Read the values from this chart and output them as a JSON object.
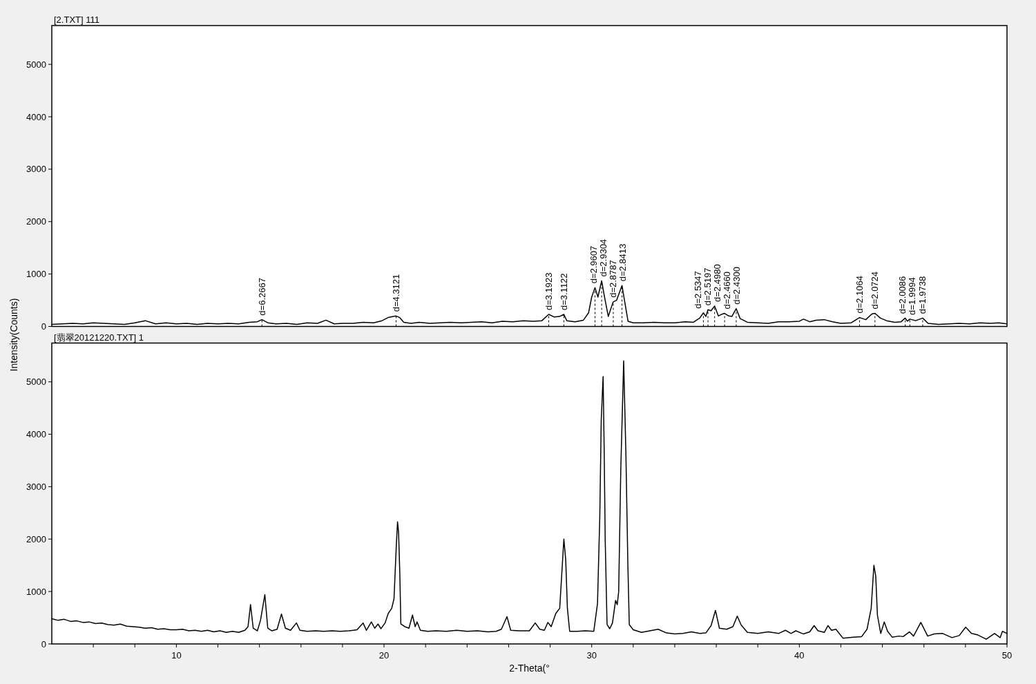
{
  "chart_data": [
    {
      "type": "line",
      "title": "[2.TXT] 111",
      "color": "#000000",
      "x": [
        4.0,
        4.5,
        5.0,
        5.5,
        6.0,
        6.5,
        7.0,
        7.5,
        8.0,
        8.5,
        9.0,
        9.5,
        10.0,
        10.5,
        11.0,
        11.5,
        12.0,
        12.5,
        13.0,
        13.5,
        13.9,
        14.12,
        14.4,
        14.8,
        15.3,
        15.8,
        16.3,
        16.8,
        17.2,
        17.6,
        18.0,
        18.5,
        19.0,
        19.5,
        19.9,
        20.2,
        20.45,
        20.58,
        20.75,
        20.95,
        21.3,
        21.7,
        22.2,
        22.7,
        23.2,
        23.7,
        24.2,
        24.7,
        25.2,
        25.7,
        26.2,
        26.7,
        27.2,
        27.6,
        27.93,
        28.2,
        28.45,
        28.66,
        28.8,
        29.2,
        29.6,
        29.85,
        30.0,
        30.16,
        30.3,
        30.48,
        30.6,
        30.8,
        31.0,
        31.04,
        31.2,
        31.46,
        31.6,
        31.75,
        32.0,
        32.5,
        33.0,
        33.5,
        34.0,
        34.5,
        34.9,
        35.2,
        35.38,
        35.5,
        35.6,
        35.75,
        35.92,
        36.1,
        36.25,
        36.4,
        36.6,
        36.75,
        36.96,
        37.15,
        37.5,
        38.0,
        38.5,
        39.0,
        39.5,
        40.0,
        40.2,
        40.5,
        40.8,
        41.2,
        41.6,
        42.0,
        42.5,
        42.9,
        43.2,
        43.5,
        43.64,
        43.9,
        44.2,
        44.6,
        44.9,
        45.1,
        45.2,
        45.32,
        45.6,
        45.94,
        46.2,
        46.7,
        47.2,
        47.7,
        48.2,
        48.7,
        49.2,
        49.6,
        50.0
      ],
      "values": [
        40,
        50,
        60,
        50,
        70,
        60,
        50,
        40,
        70,
        110,
        50,
        70,
        50,
        60,
        40,
        60,
        50,
        60,
        50,
        80,
        90,
        130,
        70,
        50,
        60,
        40,
        70,
        60,
        120,
        50,
        60,
        60,
        80,
        70,
        110,
        170,
        190,
        200,
        170,
        80,
        60,
        80,
        60,
        70,
        80,
        70,
        80,
        90,
        70,
        100,
        90,
        110,
        100,
        110,
        230,
        180,
        190,
        230,
        110,
        90,
        120,
        260,
        560,
        740,
        560,
        870,
        600,
        190,
        430,
        470,
        500,
        780,
        450,
        100,
        70,
        70,
        80,
        70,
        70,
        90,
        80,
        160,
        260,
        190,
        320,
        300,
        390,
        200,
        230,
        250,
        200,
        190,
        340,
        150,
        80,
        70,
        60,
        90,
        90,
        100,
        140,
        90,
        120,
        130,
        90,
        60,
        70,
        170,
        130,
        240,
        250,
        160,
        110,
        80,
        90,
        160,
        100,
        140,
        110,
        160,
        60,
        40,
        50,
        60,
        50,
        70,
        60,
        70,
        50
      ],
      "xlim": [
        4,
        50
      ],
      "ylim": [
        0,
        5740
      ],
      "yticks": [
        0,
        1000,
        2000,
        3000,
        4000,
        5000
      ],
      "tick_labels": "y",
      "annotations": [
        {
          "text": "d=6.2667",
          "x": 14.12,
          "y": 130
        },
        {
          "text": "d=4.3121",
          "x": 20.58,
          "y": 200
        },
        {
          "text": "d=3.1923",
          "x": 27.93,
          "y": 230
        },
        {
          "text": "d=3.1122",
          "x": 28.66,
          "y": 230
        },
        {
          "text": "d=2.9607",
          "x": 30.16,
          "y": 740
        },
        {
          "text": "d=2.9304",
          "x": 30.48,
          "y": 870
        },
        {
          "text": "d=2.8787",
          "x": 31.04,
          "y": 470
        },
        {
          "text": "d=2.8413",
          "x": 31.46,
          "y": 780
        },
        {
          "text": "d=2.5347",
          "x": 35.38,
          "y": 260
        },
        {
          "text": "d=2.5197",
          "x": 35.6,
          "y": 320
        },
        {
          "text": "d=2.4980",
          "x": 35.92,
          "y": 390
        },
        {
          "text": "d=2.4660",
          "x": 36.4,
          "y": 250
        },
        {
          "text": "d=2.4300",
          "x": 36.96,
          "y": 340
        },
        {
          "text": "d=2.1064",
          "x": 42.9,
          "y": 170
        },
        {
          "text": "d=2.0724",
          "x": 43.64,
          "y": 250
        },
        {
          "text": "d=2.0086",
          "x": 45.1,
          "y": 160
        },
        {
          "text": "d=1.9994",
          "x": 45.32,
          "y": 140
        },
        {
          "text": "d=1.9738",
          "x": 45.94,
          "y": 160
        }
      ]
    },
    {
      "type": "line",
      "title": "[翡翠20121220.TXT] 1",
      "xlabel": "2-Theta(°",
      "ylabel": "Intensity(Counts)",
      "color": "#000000",
      "x": [
        4.0,
        4.3,
        4.6,
        4.9,
        5.2,
        5.5,
        5.8,
        6.1,
        6.4,
        6.7,
        7.0,
        7.3,
        7.6,
        7.9,
        8.2,
        8.5,
        8.8,
        9.1,
        9.4,
        9.7,
        10.0,
        10.3,
        10.6,
        10.9,
        11.2,
        11.5,
        11.8,
        12.1,
        12.4,
        12.7,
        13.0,
        13.3,
        13.45,
        13.57,
        13.7,
        13.9,
        14.05,
        14.26,
        14.4,
        14.6,
        14.85,
        15.06,
        15.25,
        15.5,
        15.78,
        15.95,
        16.3,
        16.7,
        17.1,
        17.5,
        17.9,
        18.3,
        18.7,
        18.99,
        19.15,
        19.39,
        19.55,
        19.71,
        19.85,
        20.05,
        20.2,
        20.37,
        20.48,
        20.59,
        20.65,
        20.7,
        20.76,
        20.81,
        21.0,
        21.2,
        21.37,
        21.5,
        21.59,
        21.75,
        22.1,
        22.5,
        23.0,
        23.5,
        24.0,
        24.5,
        25.0,
        25.4,
        25.65,
        25.92,
        26.1,
        26.5,
        27.0,
        27.28,
        27.5,
        27.72,
        27.89,
        28.05,
        28.27,
        28.46,
        28.66,
        28.75,
        28.83,
        28.94,
        29.3,
        29.7,
        30.1,
        30.28,
        30.39,
        30.46,
        30.55,
        30.6,
        30.65,
        30.74,
        30.87,
        31.0,
        31.15,
        31.23,
        31.3,
        31.4,
        31.54,
        31.65,
        31.74,
        31.81,
        32.0,
        32.4,
        32.8,
        33.2,
        33.6,
        34.0,
        34.4,
        34.8,
        35.2,
        35.5,
        35.75,
        35.96,
        36.15,
        36.5,
        36.8,
        37.01,
        37.2,
        37.5,
        38.0,
        38.5,
        39.0,
        39.33,
        39.6,
        39.83,
        40.2,
        40.5,
        40.71,
        40.9,
        41.2,
        41.38,
        41.55,
        41.76,
        42.1,
        42.6,
        43.0,
        43.26,
        43.46,
        43.59,
        43.68,
        43.76,
        43.92,
        44.09,
        44.25,
        44.47,
        44.8,
        45.0,
        45.3,
        45.5,
        45.85,
        46.18,
        46.5,
        46.9,
        47.35,
        47.7,
        48.01,
        48.29,
        48.6,
        49.0,
        49.4,
        49.67,
        49.78,
        50.0
      ],
      "values": [
        480,
        450,
        470,
        430,
        440,
        410,
        420,
        390,
        400,
        370,
        360,
        380,
        340,
        330,
        320,
        300,
        310,
        280,
        290,
        270,
        270,
        280,
        250,
        260,
        240,
        260,
        230,
        250,
        220,
        240,
        220,
        260,
        330,
        750,
        300,
        250,
        450,
        940,
        300,
        250,
        280,
        570,
        300,
        260,
        400,
        260,
        240,
        250,
        240,
        250,
        240,
        250,
        270,
        400,
        260,
        420,
        300,
        380,
        290,
        400,
        580,
        680,
        860,
        1870,
        2330,
        2130,
        1340,
        380,
        330,
        300,
        550,
        330,
        420,
        260,
        240,
        250,
        240,
        260,
        240,
        250,
        230,
        240,
        280,
        520,
        260,
        250,
        250,
        400,
        280,
        260,
        410,
        330,
        580,
        680,
        2000,
        1600,
        680,
        240,
        240,
        250,
        240,
        770,
        2430,
        4280,
        5100,
        3750,
        2000,
        370,
        290,
        400,
        830,
        750,
        1000,
        3310,
        5400,
        3580,
        1560,
        370,
        270,
        220,
        250,
        280,
        210,
        190,
        200,
        230,
        200,
        210,
        350,
        640,
        300,
        280,
        330,
        530,
        360,
        220,
        200,
        230,
        200,
        260,
        200,
        250,
        190,
        230,
        350,
        250,
        220,
        350,
        260,
        280,
        110,
        130,
        140,
        280,
        680,
        1500,
        1290,
        550,
        200,
        420,
        240,
        130,
        150,
        140,
        230,
        150,
        410,
        150,
        190,
        200,
        120,
        160,
        320,
        200,
        170,
        90,
        200,
        120,
        240,
        200
      ],
      "xlim": [
        4,
        50
      ],
      "ylim": [
        0,
        5740
      ],
      "xticks": [
        {
          "value": 6,
          "label": null
        },
        {
          "value": 8,
          "label": null
        },
        10,
        {
          "value": 12,
          "label": null
        },
        {
          "value": 14,
          "label": null
        },
        {
          "value": 16,
          "label": null
        },
        {
          "value": 18,
          "label": null
        },
        20,
        {
          "value": 22,
          "label": null
        },
        {
          "value": 24,
          "label": null
        },
        {
          "value": 26,
          "label": null
        },
        {
          "value": 28,
          "label": null
        },
        30,
        {
          "value": 32,
          "label": null
        },
        {
          "value": 34,
          "label": null
        },
        {
          "value": 36,
          "label": null
        },
        {
          "value": 38,
          "label": null
        },
        40,
        {
          "value": 42,
          "label": null
        },
        {
          "value": 44,
          "label": null
        },
        {
          "value": 46,
          "label": null
        },
        {
          "value": 48,
          "label": null
        },
        50
      ],
      "yticks": [
        0,
        1000,
        2000,
        3000,
        4000,
        5000
      ]
    }
  ]
}
